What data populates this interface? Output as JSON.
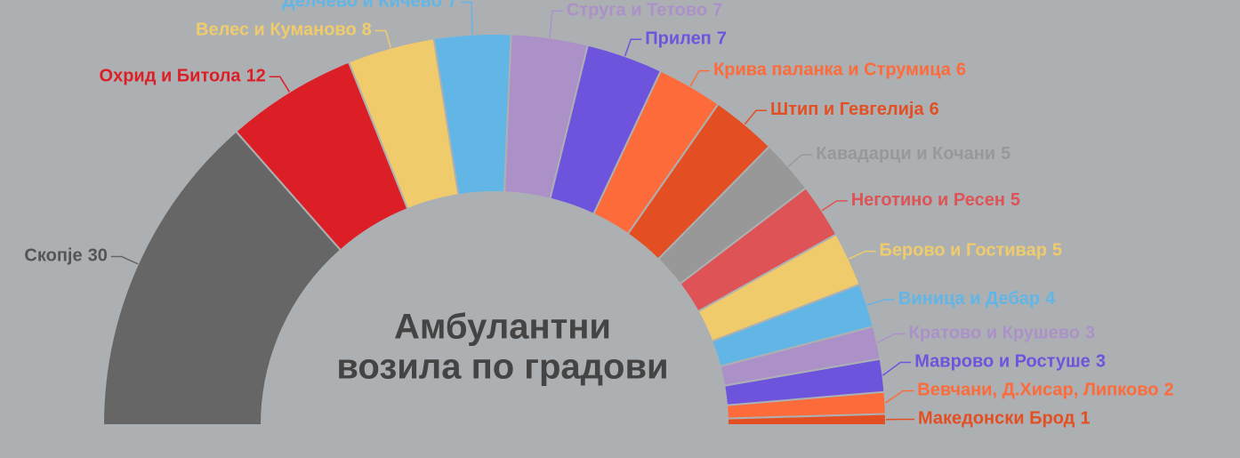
{
  "chart_data": {
    "type": "semi-donut",
    "title": [
      "Амбулантни",
      "возила по градови"
    ],
    "categories": [
      "Скопје",
      "Охрид и Битола",
      "Велес и Куманово",
      "Делчево и Кичево",
      "Струга и Тетово",
      "Прилеп",
      "Крива паланка и Струмица",
      "Штип и Гевгелија",
      "Кавадарци и Кочани",
      "Неготино и Ресен",
      "Берово и Гостивар",
      "Виница и Дебар",
      "Кратово и Крушево",
      "Маврово и Ростуше",
      "Вевчани, Д.Хисар, Липково",
      "Македонски Брод"
    ],
    "values": [
      30,
      12,
      8,
      7,
      7,
      7,
      6,
      6,
      5,
      5,
      5,
      4,
      3,
      3,
      2,
      1
    ],
    "colors": [
      "#666666",
      "#dc1f26",
      "#f0cb6c",
      "#62b6e6",
      "#ab91c8",
      "#6e53dd",
      "#fd6b3a",
      "#e34f23",
      "#989898",
      "#de5356",
      "#f0cb6c",
      "#62b6e6",
      "#ab91c8",
      "#6e53dd",
      "#fd6b3a",
      "#e34f23"
    ]
  }
}
